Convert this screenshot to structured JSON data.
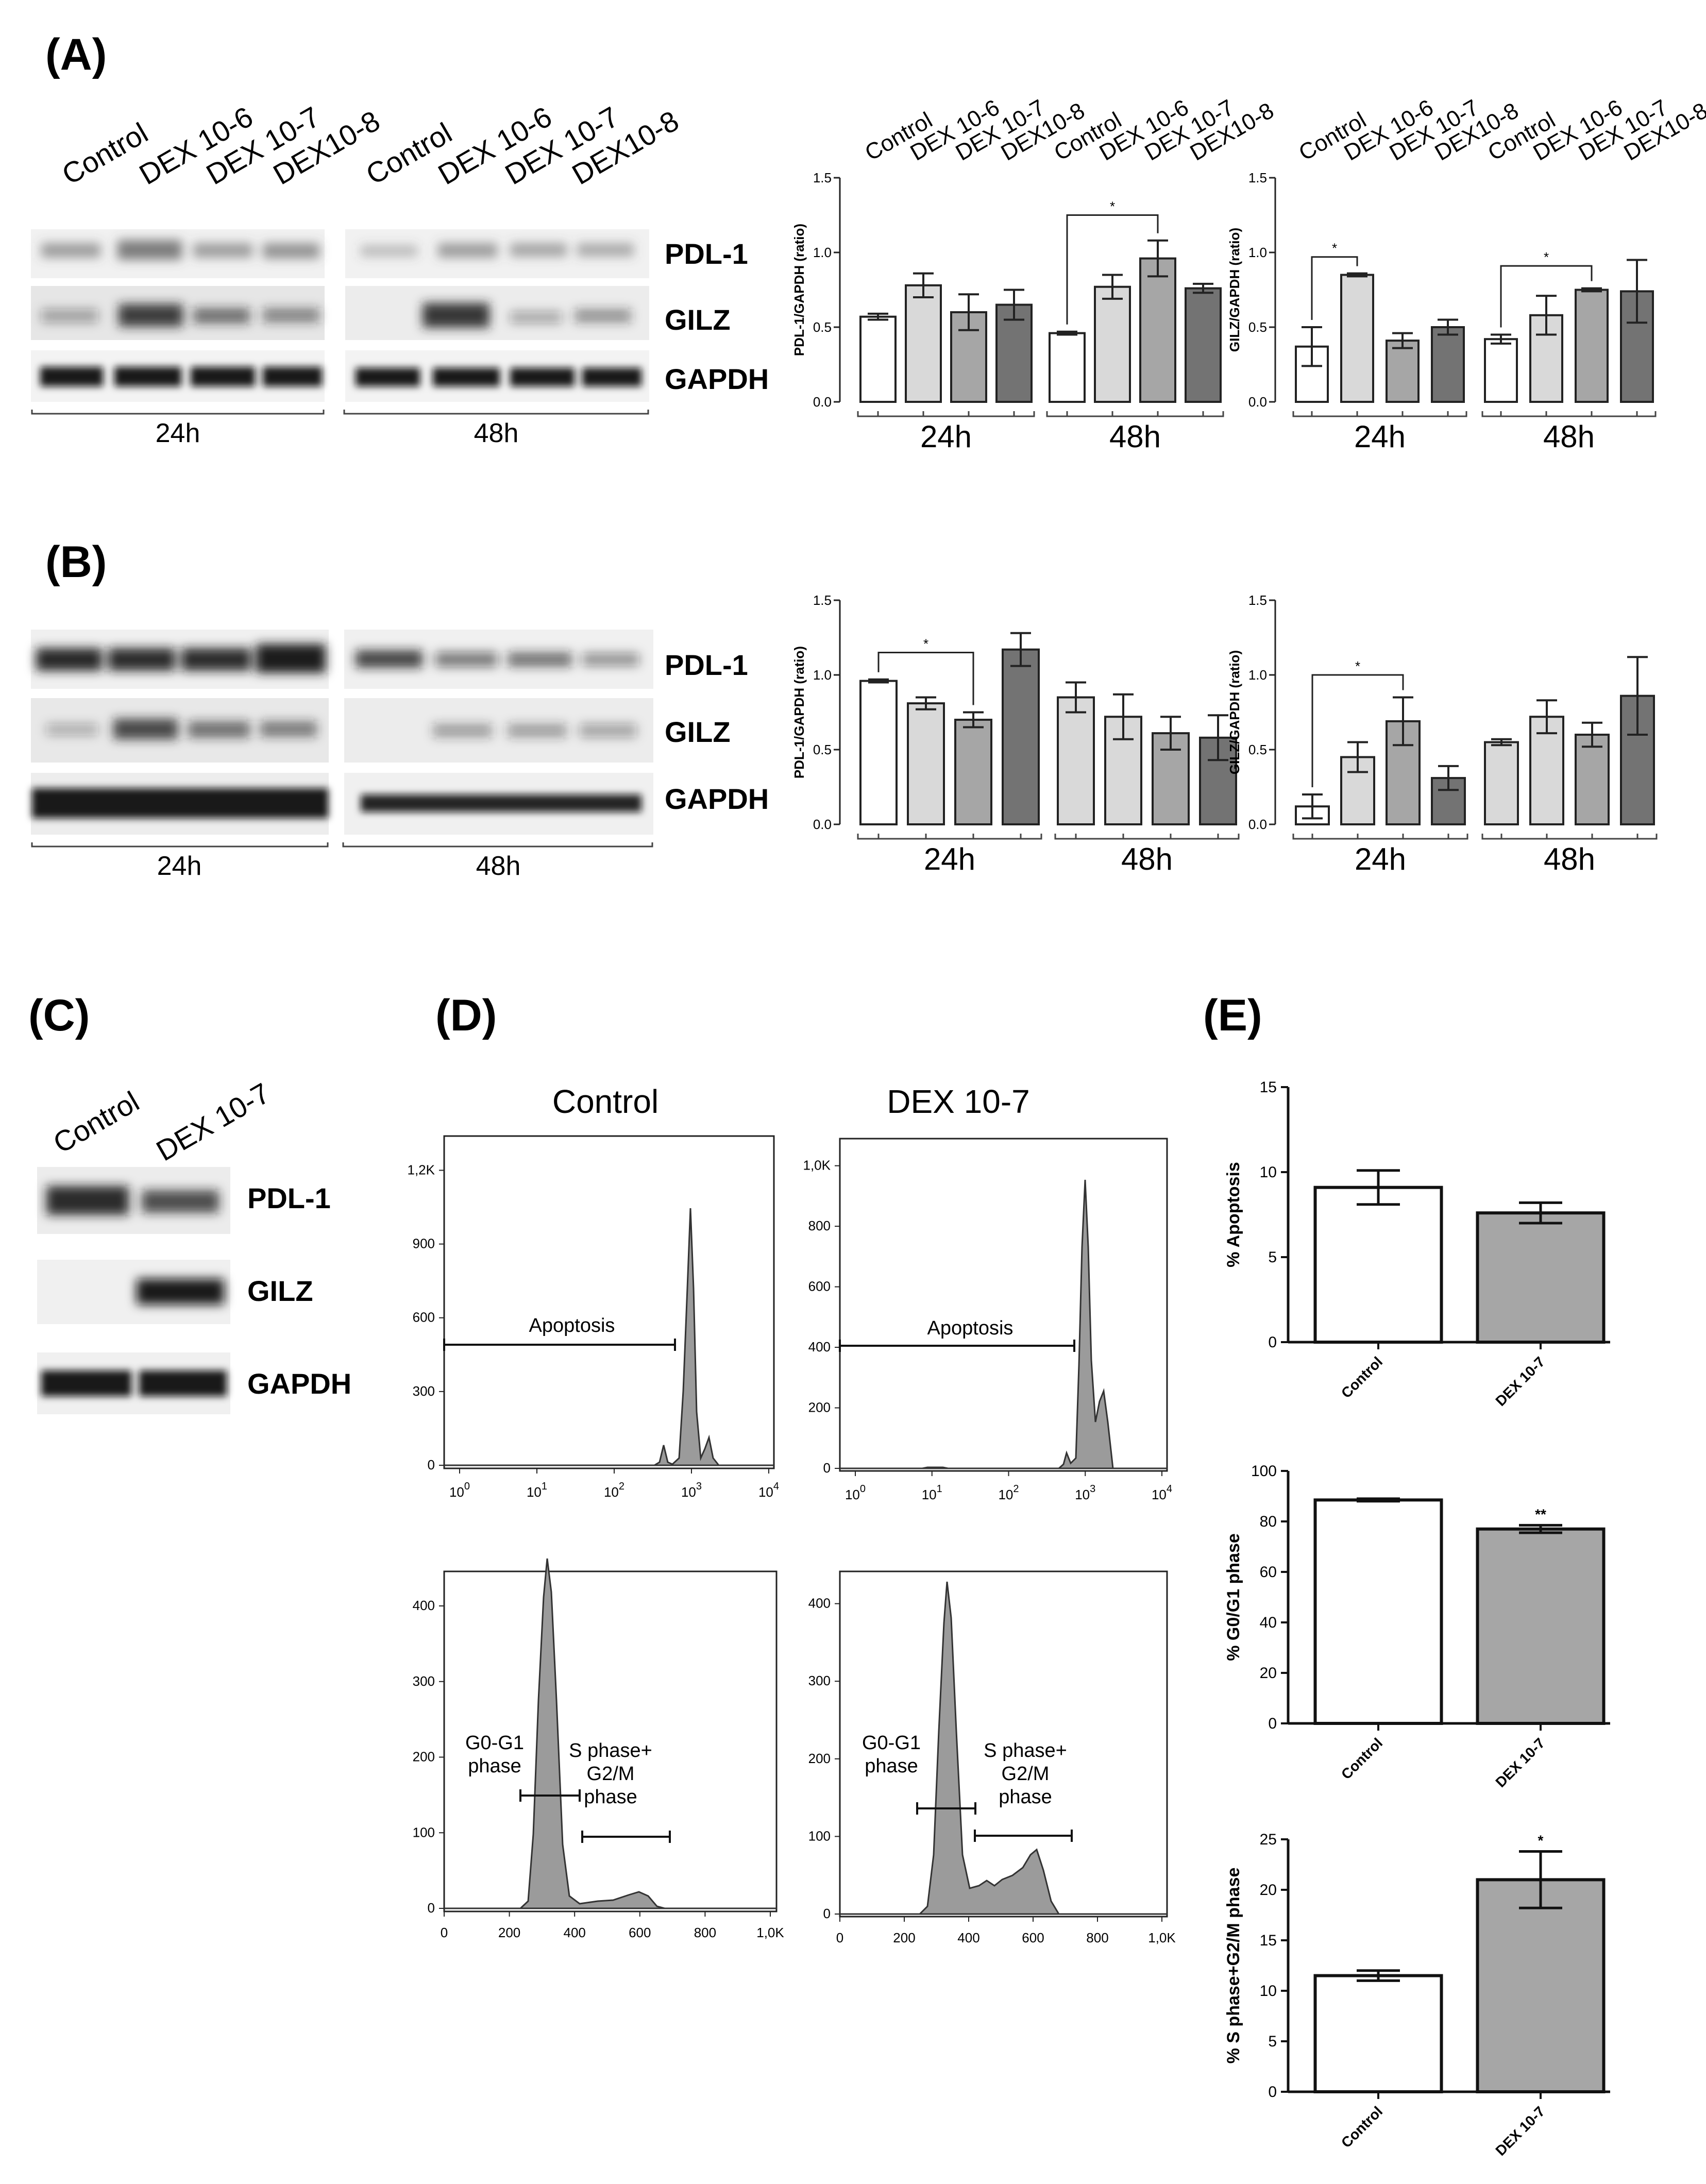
{
  "panels": {
    "A": "(A)",
    "B": "(B)",
    "C": "(C)",
    "D": "(D)",
    "E": "(E)"
  },
  "proteins": {
    "pdl1": "PDL-1",
    "gilz": "GILZ",
    "gapdh": "GAPDH"
  },
  "blot_lanes_AB": {
    "time24": [
      "Control",
      "DEX 10-6",
      "DEX 10-7",
      "DEX10-8"
    ],
    "time48": [
      "Control",
      "DEX 10-6",
      "DEX 10-7",
      "DEX10-8"
    ]
  },
  "blot_lanes_C": [
    "Control",
    "DEX 10-7"
  ],
  "times": {
    "t24": "24h",
    "t48": "48h"
  },
  "flow": {
    "title_control": "Control",
    "title_dex": "DEX 10-7",
    "apoptosis_label": "Apoptosis",
    "g0g1_label_1": "G0-G1",
    "g0g1_label_2": "phase",
    "s_label_1": "S phase+",
    "s_label_2": "G2/M",
    "s_label_3": "phase",
    "log_ticks": [
      "10^0",
      "10^1",
      "10^2",
      "10^3",
      "10^4"
    ],
    "ctrl_hist_yticks": [
      "0",
      "300",
      "600",
      "900",
      "1,2K"
    ],
    "dex_hist_yticks": [
      "0",
      "200",
      "400",
      "600",
      "800",
      "1,0K"
    ],
    "ctrl_cycle_yticks": [
      "0",
      "100",
      "200",
      "300",
      "400"
    ],
    "dex_cycle_yticks": [
      "0",
      "100",
      "200",
      "300",
      "400"
    ],
    "cycle_xticks": [
      "0",
      "200",
      "400",
      "600",
      "800",
      "1,0K"
    ]
  },
  "chart_data": [
    {
      "id": "A-pdl1",
      "type": "bar",
      "ylabel": "PDL-1/GAPDH (ratio)",
      "ylim": [
        0,
        1.5
      ],
      "yticks": [
        "0.0",
        "0.5",
        "1.0",
        "1.5"
      ],
      "categories": [
        "Control",
        "DEX 10-6",
        "DEX 10-7",
        "DEX10-8",
        "Control",
        "DEX 10-6",
        "DEX 10-7",
        "DEX10-8"
      ],
      "groups": [
        "24h",
        "48h"
      ],
      "values": [
        0.57,
        0.78,
        0.6,
        0.65,
        0.46,
        0.77,
        0.96,
        0.76
      ],
      "errors": [
        0.02,
        0.08,
        0.12,
        0.1,
        0.01,
        0.08,
        0.12,
        0.03
      ],
      "colors": [
        "#ffffff",
        "#d9d9d9",
        "#a6a6a6",
        "#737373",
        "#ffffff",
        "#d9d9d9",
        "#a6a6a6",
        "#737373"
      ],
      "significance": [
        {
          "from": 4,
          "to": 6,
          "y": 1.25,
          "label": "*"
        }
      ],
      "tiltlabels": true
    },
    {
      "id": "A-gilz",
      "type": "bar",
      "ylabel": "GILZ/GAPDH (ratio)",
      "ylim": [
        0,
        1.5
      ],
      "yticks": [
        "0.0",
        "0.5",
        "1.0",
        "1.5"
      ],
      "categories": [
        "Control",
        "DEX 10-6",
        "DEX 10-7",
        "DEX10-8",
        "Control",
        "DEX 10-6",
        "DEX 10-7",
        "DEX10-8"
      ],
      "groups": [
        "24h",
        "48h"
      ],
      "values": [
        0.37,
        0.85,
        0.41,
        0.5,
        0.42,
        0.58,
        0.75,
        0.74
      ],
      "errors": [
        0.13,
        0.01,
        0.05,
        0.05,
        0.03,
        0.13,
        0.01,
        0.21
      ],
      "colors": [
        "#ffffff",
        "#d9d9d9",
        "#a6a6a6",
        "#737373",
        "#ffffff",
        "#d9d9d9",
        "#a6a6a6",
        "#737373"
      ],
      "significance": [
        {
          "from": 0,
          "to": 1,
          "y": 0.97,
          "label": "*"
        },
        {
          "from": 4,
          "to": 6,
          "y": 0.91,
          "label": "*"
        }
      ],
      "tiltlabels": true
    },
    {
      "id": "B-pdl1",
      "type": "bar",
      "ylabel": "PDL-1/GAPDH (ratio)",
      "ylim": [
        0,
        1.5
      ],
      "yticks": [
        "0.0",
        "0.5",
        "1.0",
        "1.5"
      ],
      "groups": [
        "24h",
        "48h"
      ],
      "values": [
        0.96,
        0.81,
        0.7,
        1.17,
        0.85,
        0.72,
        0.61,
        0.58
      ],
      "errors": [
        0.01,
        0.04,
        0.05,
        0.11,
        0.1,
        0.15,
        0.11,
        0.15
      ],
      "colors": [
        "#ffffff",
        "#d9d9d9",
        "#a6a6a6",
        "#737373",
        "#d9d9d9",
        "#d9d9d9",
        "#a6a6a6",
        "#737373"
      ],
      "significance": [
        {
          "from": 0,
          "to": 2,
          "y": 1.15,
          "label": "*"
        }
      ],
      "tiltlabels": false
    },
    {
      "id": "B-gilz",
      "type": "bar",
      "ylabel": "GILZ/GAPDH (ratio)",
      "ylim": [
        0,
        1.5
      ],
      "yticks": [
        "0.0",
        "0.5",
        "1.0",
        "1.5"
      ],
      "groups": [
        "24h",
        "48h"
      ],
      "values": [
        0.12,
        0.45,
        0.69,
        0.31,
        0.55,
        0.72,
        0.6,
        0.86
      ],
      "errors": [
        0.08,
        0.1,
        0.16,
        0.08,
        0.02,
        0.11,
        0.08,
        0.26
      ],
      "colors": [
        "#ffffff",
        "#d9d9d9",
        "#a6a6a6",
        "#737373",
        "#d9d9d9",
        "#d9d9d9",
        "#a6a6a6",
        "#737373"
      ],
      "significance": [
        {
          "from": 0,
          "to": 2,
          "y": 1.0,
          "label": "*"
        }
      ],
      "tiltlabels": false
    },
    {
      "id": "E-apoptosis",
      "type": "bar",
      "ylabel": "% Apoptosis",
      "ylim": [
        0,
        15
      ],
      "yticks": [
        "0",
        "5",
        "10",
        "15"
      ],
      "categories": [
        "Control",
        "DEX 10-7"
      ],
      "values": [
        9.1,
        7.6
      ],
      "errors": [
        1.0,
        0.6
      ],
      "colors": [
        "#ffffff",
        "#a6a6a6"
      ],
      "marks": [
        "",
        ""
      ]
    },
    {
      "id": "E-g0g1",
      "type": "bar",
      "ylabel": "% G0/G1 phase",
      "ylim": [
        0,
        100
      ],
      "yticks": [
        "0",
        "20",
        "40",
        "60",
        "80",
        "100"
      ],
      "categories": [
        "Control",
        "DEX 10-7"
      ],
      "values": [
        88.5,
        77
      ],
      "errors": [
        0.5,
        1.5
      ],
      "colors": [
        "#ffffff",
        "#a6a6a6"
      ],
      "marks": [
        "",
        "**"
      ]
    },
    {
      "id": "E-sphase",
      "type": "bar",
      "ylabel": "% S phase+G2/M phase",
      "ylim": [
        0,
        25
      ],
      "yticks": [
        "0",
        "5",
        "10",
        "15",
        "20",
        "25"
      ],
      "categories": [
        "Control",
        "DEX 10-7"
      ],
      "values": [
        11.5,
        21
      ],
      "errors": [
        0.5,
        2.8
      ],
      "colors": [
        "#ffffff",
        "#a6a6a6"
      ],
      "marks": [
        "",
        "*"
      ]
    }
  ]
}
